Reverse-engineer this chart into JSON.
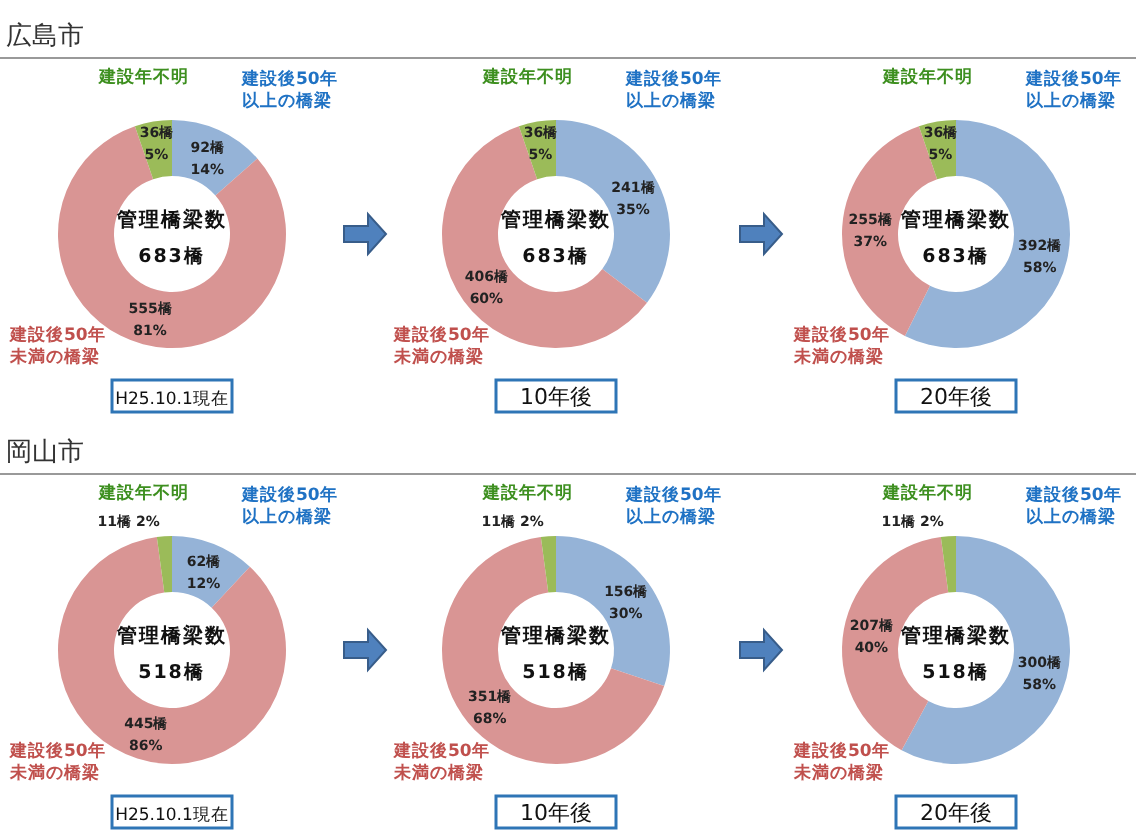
{
  "chart_data": [
    {
      "type": "donut",
      "title": "広島市",
      "subtitle": "H25.10.1現在",
      "categories": [
        "建設後50年以上の橋梁",
        "建設後50年未満の橋梁",
        "建設年不明"
      ],
      "values": [
        92,
        555,
        36
      ],
      "colors": [
        "#95b3d7",
        "#d99594",
        "#9bbb59"
      ],
      "value_labels": [
        "92橋\n14%",
        "555橋\n81%",
        "36橋\n5%"
      ],
      "annotations": [
        "管理橋梁数",
        "683橋"
      ]
    },
    {
      "type": "donut",
      "subtitle": "10年後",
      "categories": [
        "建設後50年以上の橋梁",
        "建設後50年未満の橋梁",
        "建設年不明"
      ],
      "values": [
        241,
        406,
        36
      ],
      "colors": [
        "#95b3d7",
        "#d99594",
        "#9bbb59"
      ],
      "value_labels": [
        "241橋\n35%",
        "406橋\n60%",
        "36橋\n5%"
      ],
      "annotations": [
        "管理橋梁数",
        "683橋"
      ]
    },
    {
      "type": "donut",
      "subtitle": "20年後",
      "categories": [
        "建設後50年以上の橋梁",
        "建設後50年未満の橋梁",
        "建設年不明"
      ],
      "values": [
        392,
        255,
        36
      ],
      "colors": [
        "#95b3d7",
        "#d99594",
        "#9bbb59"
      ],
      "value_labels": [
        "392橋\n58%",
        "255橋\n37%",
        "36橋\n5%"
      ],
      "annotations": [
        "管理橋梁数",
        "683橋"
      ]
    },
    {
      "type": "donut",
      "title": "岡山市",
      "subtitle": "H25.10.1現在",
      "categories": [
        "建設後50年以上の橋梁",
        "建設後50年未満の橋梁",
        "建設年不明"
      ],
      "values": [
        62,
        445,
        11
      ],
      "colors": [
        "#95b3d7",
        "#d99594",
        "#9bbb59"
      ],
      "value_labels": [
        "62橋\n12%",
        "445橋\n86%",
        "11橋 2%"
      ],
      "annotations": [
        "管理橋梁数",
        "518橋"
      ]
    },
    {
      "type": "donut",
      "subtitle": "10年後",
      "categories": [
        "建設後50年以上の橋梁",
        "建設後50年未満の橋梁",
        "建設年不明"
      ],
      "values": [
        156,
        351,
        11
      ],
      "colors": [
        "#95b3d7",
        "#d99594",
        "#9bbb59"
      ],
      "value_labels": [
        "156橋\n30%",
        "351橋\n68%",
        "11橋 2%"
      ],
      "annotations": [
        "管理橋梁数",
        "518橋"
      ]
    },
    {
      "type": "donut",
      "subtitle": "20年後",
      "categories": [
        "建設後50年以上の橋梁",
        "建設後50年未満の橋梁",
        "建設年不明"
      ],
      "values": [
        300,
        207,
        11
      ],
      "colors": [
        "#95b3d7",
        "#d99594",
        "#9bbb59"
      ],
      "value_labels": [
        "300橋\n58%",
        "207橋\n40%",
        "11橋 2%"
      ],
      "annotations": [
        "管理橋梁数",
        "518橋"
      ]
    }
  ]
}
